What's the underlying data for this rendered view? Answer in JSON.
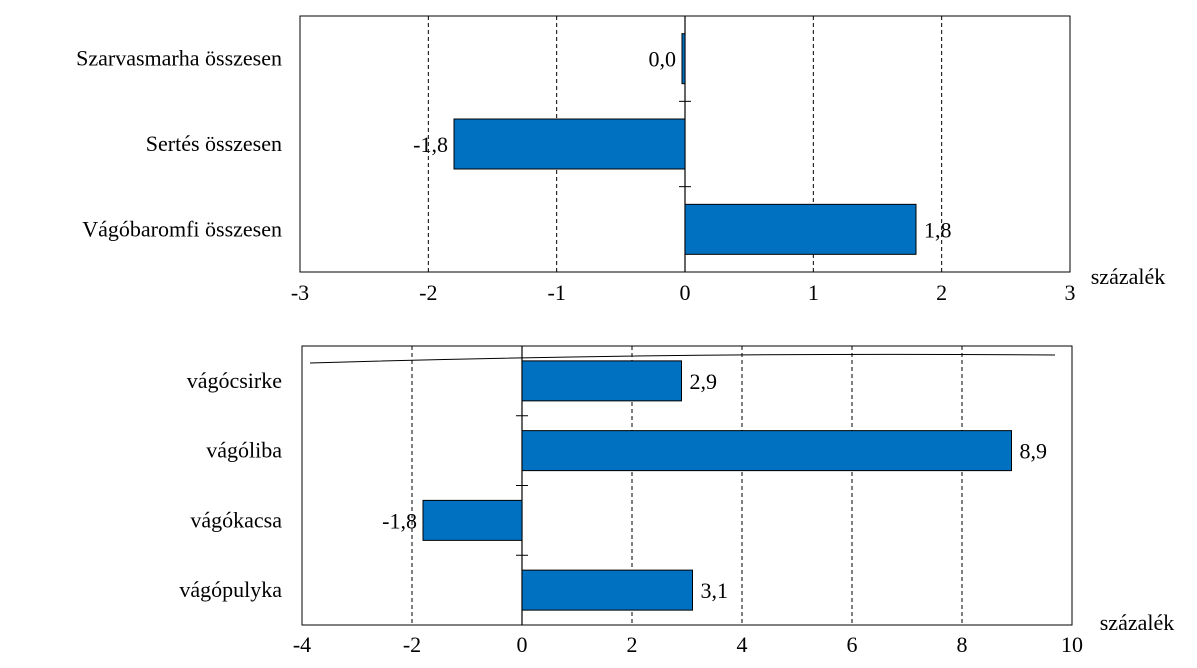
{
  "chart_data": [
    {
      "type": "bar",
      "orientation": "horizontal",
      "categories": [
        "Szarvasmarha összesen",
        "Sertés összesen",
        "Vágóbaromfi összesen"
      ],
      "values": [
        0.0,
        -1.8,
        1.8
      ],
      "value_labels": [
        "0,0",
        "-1,8",
        "1,8"
      ],
      "xlim": [
        -3,
        3
      ],
      "xticks": [
        "-3",
        "-2",
        "-1",
        "0",
        "1",
        "2",
        "3"
      ],
      "xlabel": "százalék",
      "grid": true,
      "bar_color": "#0070C0"
    },
    {
      "type": "bar",
      "orientation": "horizontal",
      "categories": [
        "vágócsirke",
        "vágóliba",
        "vágókacsa",
        "vágópulyka"
      ],
      "values": [
        2.9,
        8.9,
        -1.8,
        3.1
      ],
      "value_labels": [
        "2,9",
        "8,9",
        "-1,8",
        "3,1"
      ],
      "xlim": [
        -4,
        10
      ],
      "xticks": [
        "-4",
        "-2",
        "0",
        "2",
        "4",
        "6",
        "8",
        "10"
      ],
      "xlabel": "százalék",
      "grid": true,
      "bar_color": "#0070C0"
    }
  ]
}
